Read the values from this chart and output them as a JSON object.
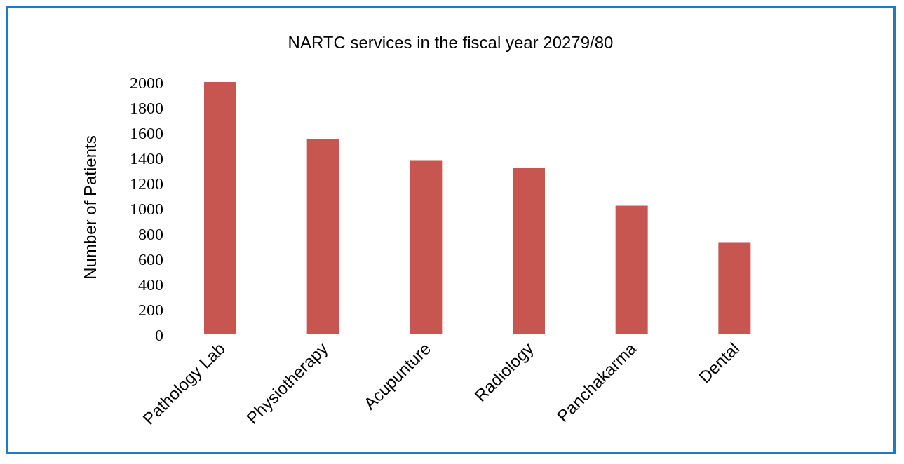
{
  "chart_data": {
    "type": "bar",
    "title": "NARTC services in the fiscal year 20279/80",
    "ylabel": "Number of Patients",
    "categories": [
      "Pathology Lab",
      "Physiotherapy",
      "Acupunture",
      "Radiology",
      "Panchakarma",
      "Dental"
    ],
    "values": [
      2000,
      1550,
      1380,
      1320,
      1020,
      730
    ],
    "color": "#c85650",
    "ylim": [
      0,
      2000
    ],
    "yticks": [
      0,
      200,
      400,
      600,
      800,
      1000,
      1200,
      1400,
      1600,
      1800,
      2000
    ],
    "grid": false,
    "legend": false
  }
}
